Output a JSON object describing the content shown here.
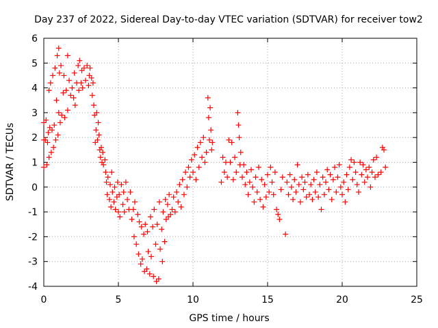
{
  "chart_data": {
    "type": "scatter",
    "title": "Day 237 of 2022, Sidereal Day-to-day VTEC variation (SDTVAR) for receiver tow2",
    "xlabel": "GPS time / hours",
    "ylabel": "SDTVAR / TECUs",
    "xlim": [
      0,
      25
    ],
    "ylim": [
      -4,
      6
    ],
    "xticks": [
      0,
      5,
      10,
      15,
      20,
      25
    ],
    "yticks": [
      -4,
      -3,
      -2,
      -1,
      0,
      1,
      2,
      3,
      4,
      5,
      6
    ],
    "x_tick_labels": [
      "0",
      "5",
      "10",
      "15",
      "20",
      "25"
    ],
    "y_tick_labels": [
      "-4",
      "-3",
      "-2",
      "-1",
      "0",
      "1",
      "2",
      "3",
      "4",
      "5",
      "6"
    ],
    "grid": true,
    "marker": "+",
    "series": [
      {
        "name": "tow2",
        "color": "#ff0000",
        "points": [
          [
            0.0,
            1.9
          ],
          [
            0.0,
            2.6
          ],
          [
            0.0,
            0.8
          ],
          [
            0.1,
            1.9
          ],
          [
            0.15,
            2.7
          ],
          [
            0.2,
            0.9
          ],
          [
            0.25,
            1.8
          ],
          [
            0.3,
            2.2
          ],
          [
            0.35,
            3.9
          ],
          [
            0.35,
            1.2
          ],
          [
            0.4,
            2.4
          ],
          [
            0.45,
            4.2
          ],
          [
            0.5,
            1.4
          ],
          [
            0.55,
            2.3
          ],
          [
            0.6,
            4.5
          ],
          [
            0.65,
            1.6
          ],
          [
            0.7,
            2.5
          ],
          [
            0.75,
            4.8
          ],
          [
            0.8,
            1.9
          ],
          [
            0.85,
            3.5
          ],
          [
            0.9,
            5.3
          ],
          [
            0.95,
            2.1
          ],
          [
            1.0,
            5.6
          ],
          [
            1.0,
            3.0
          ],
          [
            1.05,
            4.6
          ],
          [
            1.1,
            2.6
          ],
          [
            1.15,
            4.9
          ],
          [
            1.2,
            2.9
          ],
          [
            1.3,
            3.8
          ],
          [
            1.35,
            4.5
          ],
          [
            1.4,
            2.8
          ],
          [
            1.5,
            3.9
          ],
          [
            1.6,
            5.3
          ],
          [
            1.6,
            3.1
          ],
          [
            1.7,
            4.3
          ],
          [
            1.8,
            3.7
          ],
          [
            1.9,
            4.0
          ],
          [
            2.0,
            3.6
          ],
          [
            2.05,
            4.6
          ],
          [
            2.1,
            3.3
          ],
          [
            2.2,
            4.2
          ],
          [
            2.3,
            4.9
          ],
          [
            2.35,
            3.9
          ],
          [
            2.4,
            5.1
          ],
          [
            2.5,
            4.2
          ],
          [
            2.55,
            4.7
          ],
          [
            2.6,
            4.0
          ],
          [
            2.7,
            4.8
          ],
          [
            2.8,
            4.3
          ],
          [
            2.9,
            4.9
          ],
          [
            3.0,
            4.1
          ],
          [
            3.05,
            4.5
          ],
          [
            3.1,
            4.8
          ],
          [
            3.2,
            4.4
          ],
          [
            3.25,
            3.7
          ],
          [
            3.3,
            4.2
          ],
          [
            3.35,
            3.3
          ],
          [
            3.4,
            2.9
          ],
          [
            3.45,
            1.8
          ],
          [
            3.5,
            2.3
          ],
          [
            3.55,
            3.0
          ],
          [
            3.6,
            1.9
          ],
          [
            3.65,
            2.6
          ],
          [
            3.7,
            2.1
          ],
          [
            3.75,
            1.5
          ],
          [
            3.8,
            1.2
          ],
          [
            3.85,
            1.6
          ],
          [
            3.9,
            1.0
          ],
          [
            3.95,
            1.4
          ],
          [
            4.0,
            0.9
          ],
          [
            4.1,
            1.1
          ],
          [
            4.15,
            0.6
          ],
          [
            4.2,
            0.2
          ],
          [
            4.25,
            -0.3
          ],
          [
            4.3,
            0.4
          ],
          [
            4.4,
            -0.5
          ],
          [
            4.45,
            0.1
          ],
          [
            4.5,
            -0.8
          ],
          [
            4.55,
            0.6
          ],
          [
            4.6,
            -0.2
          ],
          [
            4.7,
            -0.6
          ],
          [
            4.75,
            0.0
          ],
          [
            4.8,
            -0.9
          ],
          [
            4.9,
            -0.4
          ],
          [
            4.95,
            0.2
          ],
          [
            5.0,
            -1.0
          ],
          [
            5.05,
            -0.3
          ],
          [
            5.1,
            -1.2
          ],
          [
            5.2,
            0.1
          ],
          [
            5.3,
            -0.7
          ],
          [
            5.35,
            -0.2
          ],
          [
            5.4,
            -1.0
          ],
          [
            5.5,
            0.2
          ],
          [
            5.6,
            -0.5
          ],
          [
            5.7,
            -0.9
          ],
          [
            5.8,
            -0.2
          ],
          [
            5.9,
            -1.3
          ],
          [
            6.0,
            -0.9
          ],
          [
            6.05,
            -2.0
          ],
          [
            6.1,
            -0.6
          ],
          [
            6.2,
            -2.3
          ],
          [
            6.3,
            -1.1
          ],
          [
            6.35,
            -2.7
          ],
          [
            6.4,
            -1.4
          ],
          [
            6.5,
            -3.1
          ],
          [
            6.55,
            -1.6
          ],
          [
            6.6,
            -2.9
          ],
          [
            6.7,
            -1.9
          ],
          [
            6.75,
            -3.4
          ],
          [
            6.8,
            -1.5
          ],
          [
            6.9,
            -3.3
          ],
          [
            6.95,
            -1.8
          ],
          [
            7.0,
            -2.6
          ],
          [
            7.1,
            -3.5
          ],
          [
            7.15,
            -1.2
          ],
          [
            7.2,
            -2.8
          ],
          [
            7.3,
            -1.6
          ],
          [
            7.35,
            -3.6
          ],
          [
            7.4,
            -0.9
          ],
          [
            7.5,
            -2.3
          ],
          [
            7.55,
            -3.8
          ],
          [
            7.6,
            -1.5
          ],
          [
            7.7,
            -3.7
          ],
          [
            7.75,
            -0.6
          ],
          [
            7.8,
            -2.5
          ],
          [
            7.9,
            -1.7
          ],
          [
            7.95,
            -3.0
          ],
          [
            8.0,
            -1.0
          ],
          [
            8.1,
            -2.2
          ],
          [
            8.15,
            -0.5
          ],
          [
            8.2,
            -1.3
          ],
          [
            8.3,
            -0.7
          ],
          [
            8.35,
            -1.2
          ],
          [
            8.4,
            -0.3
          ],
          [
            8.5,
            -1.1
          ],
          [
            8.6,
            -0.9
          ],
          [
            8.7,
            -0.4
          ],
          [
            8.8,
            -1.0
          ],
          [
            8.9,
            -0.2
          ],
          [
            9.0,
            -0.6
          ],
          [
            9.1,
            0.1
          ],
          [
            9.2,
            -0.8
          ],
          [
            9.3,
            0.3
          ],
          [
            9.4,
            -0.3
          ],
          [
            9.5,
            0.6
          ],
          [
            9.6,
            0.0
          ],
          [
            9.7,
            0.8
          ],
          [
            9.8,
            0.4
          ],
          [
            9.9,
            1.1
          ],
          [
            10.0,
            0.6
          ],
          [
            10.1,
            1.3
          ],
          [
            10.2,
            0.3
          ],
          [
            10.3,
            1.6
          ],
          [
            10.4,
            0.8
          ],
          [
            10.5,
            1.8
          ],
          [
            10.6,
            1.2
          ],
          [
            10.7,
            2.0
          ],
          [
            10.8,
            1.0
          ],
          [
            10.9,
            1.4
          ],
          [
            11.0,
            3.6
          ],
          [
            11.05,
            2.8
          ],
          [
            11.1,
            1.9
          ],
          [
            11.15,
            3.2
          ],
          [
            11.2,
            2.3
          ],
          [
            11.25,
            1.5
          ],
          [
            11.3,
            1.8
          ],
          [
            11.9,
            0.2
          ],
          [
            12.0,
            1.2
          ],
          [
            12.1,
            0.6
          ],
          [
            12.2,
            1.0
          ],
          [
            12.3,
            0.4
          ],
          [
            12.4,
            1.9
          ],
          [
            12.5,
            1.0
          ],
          [
            12.6,
            1.8
          ],
          [
            12.7,
            0.3
          ],
          [
            12.8,
            1.2
          ],
          [
            12.9,
            0.6
          ],
          [
            13.0,
            3.0
          ],
          [
            13.05,
            2.5
          ],
          [
            13.1,
            2.0
          ],
          [
            13.15,
            0.9
          ],
          [
            13.2,
            1.4
          ],
          [
            13.3,
            0.4
          ],
          [
            13.4,
            0.9
          ],
          [
            13.5,
            0.1
          ],
          [
            13.6,
            0.6
          ],
          [
            13.7,
            -0.3
          ],
          [
            13.8,
            0.2
          ],
          [
            13.9,
            0.7
          ],
          [
            14.0,
            0.0
          ],
          [
            14.1,
            -0.6
          ],
          [
            14.2,
            0.4
          ],
          [
            14.3,
            -0.2
          ],
          [
            14.4,
            0.8
          ],
          [
            14.5,
            -0.5
          ],
          [
            14.6,
            0.3
          ],
          [
            14.7,
            -0.8
          ],
          [
            14.8,
            0.1
          ],
          [
            14.9,
            -0.4
          ],
          [
            15.0,
            0.5
          ],
          [
            15.1,
            -0.2
          ],
          [
            15.2,
            0.8
          ],
          [
            15.3,
            0.2
          ],
          [
            15.4,
            -0.3
          ],
          [
            15.5,
            0.6
          ],
          [
            15.6,
            -0.9
          ],
          [
            15.7,
            -1.1
          ],
          [
            15.8,
            -1.3
          ],
          [
            15.9,
            -0.1
          ],
          [
            16.0,
            0.4
          ],
          [
            16.2,
            -1.9
          ],
          [
            16.3,
            0.2
          ],
          [
            16.4,
            -0.3
          ],
          [
            16.5,
            0.5
          ],
          [
            16.6,
            0.0
          ],
          [
            16.7,
            -0.5
          ],
          [
            16.8,
            0.3
          ],
          [
            16.9,
            -0.2
          ],
          [
            17.0,
            0.9
          ],
          [
            17.1,
            0.1
          ],
          [
            17.2,
            -0.6
          ],
          [
            17.3,
            0.4
          ],
          [
            17.4,
            -0.1
          ],
          [
            17.5,
            0.2
          ],
          [
            17.6,
            -0.4
          ],
          [
            17.7,
            0.5
          ],
          [
            17.8,
            -0.3
          ],
          [
            17.9,
            0.1
          ],
          [
            18.0,
            -0.5
          ],
          [
            18.1,
            0.3
          ],
          [
            18.2,
            -0.2
          ],
          [
            18.3,
            0.6
          ],
          [
            18.4,
            -0.4
          ],
          [
            18.5,
            0.1
          ],
          [
            18.6,
            -0.9
          ],
          [
            18.7,
            0.4
          ],
          [
            18.8,
            -0.3
          ],
          [
            18.9,
            0.2
          ],
          [
            19.0,
            0.7
          ],
          [
            19.1,
            -0.1
          ],
          [
            19.2,
            0.5
          ],
          [
            19.3,
            -0.5
          ],
          [
            19.4,
            0.3
          ],
          [
            19.5,
            0.8
          ],
          [
            19.6,
            -0.2
          ],
          [
            19.7,
            0.4
          ],
          [
            19.8,
            0.9
          ],
          [
            19.9,
            0.0
          ],
          [
            20.0,
            -0.3
          ],
          [
            20.1,
            0.2
          ],
          [
            20.2,
            -0.6
          ],
          [
            20.3,
            0.5
          ],
          [
            20.4,
            -0.1
          ],
          [
            20.5,
            0.8
          ],
          [
            20.6,
            1.1
          ],
          [
            20.7,
            0.3
          ],
          [
            20.8,
            1.0
          ],
          [
            20.9,
            0.6
          ],
          [
            21.0,
            0.1
          ],
          [
            21.1,
            -0.2
          ],
          [
            21.2,
            1.0
          ],
          [
            21.3,
            0.5
          ],
          [
            21.4,
            0.9
          ],
          [
            21.5,
            0.2
          ],
          [
            21.6,
            0.7
          ],
          [
            21.7,
            0.4
          ],
          [
            21.8,
            0.8
          ],
          [
            21.9,
            0.0
          ],
          [
            22.0,
            0.6
          ],
          [
            22.1,
            1.1
          ],
          [
            22.2,
            0.4
          ],
          [
            22.3,
            1.2
          ],
          [
            22.4,
            0.5
          ],
          [
            22.6,
            0.6
          ],
          [
            22.7,
            1.6
          ],
          [
            22.8,
            1.5
          ],
          [
            22.9,
            0.8
          ]
        ]
      }
    ]
  }
}
